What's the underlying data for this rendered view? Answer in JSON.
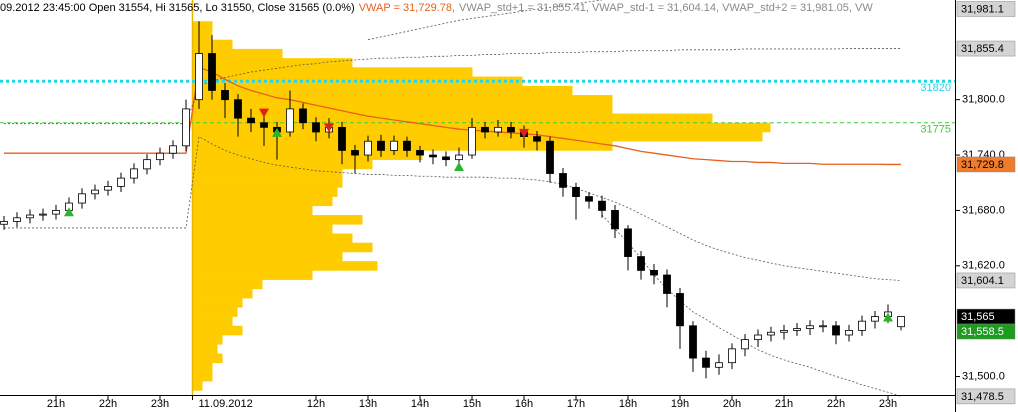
{
  "chart_data": {
    "type": "candlestick",
    "header": [
      {
        "text": "09.2012 23:45:00 Open 31554, Hi 31565, Lo 31550, Close 31565 (0.0%)",
        "color": "#000000"
      },
      {
        "text": "VWAP = 31,729.78,",
        "color": "#e8601c"
      },
      {
        "text": "VWAP_std+1 = 31,855.41, VWAP_std-1 = 31,604.14, VWAP_std+2 = 31,981.05, VW",
        "color": "#8a8a8a"
      }
    ],
    "categories": [
      null,
      null,
      null,
      null,
      "21h",
      null,
      null,
      null,
      "22h",
      null,
      null,
      null,
      "23h",
      null,
      null,
      "11.09.2012",
      null,
      null,
      null,
      null,
      null,
      null,
      null,
      null,
      "12h",
      null,
      null,
      null,
      "13h",
      null,
      null,
      null,
      "14h",
      null,
      null,
      null,
      "15h",
      null,
      null,
      null,
      "16h",
      null,
      null,
      null,
      "17h",
      null,
      null,
      null,
      "18h",
      null,
      null,
      null,
      "19h",
      null,
      null,
      null,
      "20h",
      null,
      null,
      null,
      "21h",
      null,
      null,
      null,
      "22h",
      null,
      null,
      null,
      "23h",
      null
    ],
    "open": [
      31665,
      31668,
      31672,
      31675,
      31676,
      31680,
      31688,
      31698,
      31702,
      31706,
      31715,
      31725,
      31735,
      31742,
      31750,
      31800,
      31850,
      31810,
      31800,
      31780,
      31775,
      31770,
      31765,
      31790,
      31775,
      31765,
      31770,
      31745,
      31740,
      31755,
      31745,
      31755,
      31745,
      31740,
      31738,
      31735,
      31740,
      31770,
      31765,
      31770,
      31765,
      31760,
      31755,
      31720,
      31705,
      31695,
      31690,
      31680,
      31660,
      31630,
      31615,
      31610,
      31590,
      31555,
      31520,
      31510,
      31515,
      31530,
      31540,
      31545,
      31548,
      31550,
      31552,
      31555,
      31555,
      31545,
      31550,
      31560,
      31565,
      31554
    ],
    "high": [
      31674,
      31678,
      31681,
      31682,
      31686,
      31694,
      31704,
      31708,
      31712,
      31721,
      31731,
      31741,
      31748,
      31756,
      31800,
      31885,
      31870,
      31818,
      31806,
      31790,
      31786,
      31776,
      31810,
      31796,
      31781,
      31780,
      31776,
      31751,
      31761,
      31762,
      31761,
      31760,
      31750,
      31746,
      31744,
      31748,
      31780,
      31776,
      31778,
      31776,
      31772,
      31766,
      31760,
      31726,
      31710,
      31700,
      31696,
      31686,
      31664,
      31636,
      31622,
      31616,
      31596,
      31560,
      31528,
      31524,
      31536,
      31546,
      31551,
      31554,
      31556,
      31558,
      31561,
      31561,
      31560,
      31556,
      31566,
      31571,
      31578,
      31565
    ],
    "low": [
      31659,
      31662,
      31666,
      31669,
      31670,
      31674,
      31682,
      31692,
      31696,
      31700,
      31709,
      31719,
      31729,
      31736,
      31744,
      31790,
      31800,
      31780,
      31760,
      31765,
      31750,
      31735,
      31760,
      31768,
      31755,
      31758,
      31730,
      31720,
      31733,
      31738,
      31740,
      31738,
      31732,
      31730,
      31728,
      31727,
      31736,
      31758,
      31760,
      31758,
      31748,
      31745,
      31710,
      31695,
      31670,
      31682,
      31672,
      31650,
      31615,
      31605,
      31600,
      31575,
      31530,
      31505,
      31498,
      31502,
      31508,
      31522,
      31532,
      31538,
      31540,
      31544,
      31545,
      31548,
      31535,
      31538,
      31544,
      31552,
      31558,
      31550
    ],
    "close": [
      31668,
      31672,
      31675,
      31676,
      31680,
      31688,
      31698,
      31702,
      31706,
      31715,
      31725,
      31735,
      31742,
      31750,
      31790,
      31850,
      31810,
      31800,
      31780,
      31775,
      31770,
      31765,
      31790,
      31775,
      31765,
      31770,
      31745,
      31740,
      31755,
      31745,
      31755,
      31745,
      31740,
      31738,
      31735,
      31740,
      31770,
      31765,
      31770,
      31765,
      31760,
      31755,
      31720,
      31705,
      31695,
      31690,
      31680,
      31660,
      31630,
      31615,
      31610,
      31590,
      31555,
      31520,
      31510,
      31515,
      31530,
      31540,
      31545,
      31548,
      31550,
      31552,
      31555,
      31555,
      31545,
      31550,
      31560,
      31565,
      31570,
      31565
    ],
    "overlays": [
      {
        "color": "#e8601c",
        "dash": false,
        "values": [
          31742,
          31742,
          31742,
          31742,
          31742,
          31742,
          31742,
          31742,
          31742,
          31742,
          31742,
          31742,
          31742,
          31742,
          31742,
          31835,
          31830,
          31822,
          31815,
          31810,
          31806,
          31802,
          31800,
          31797,
          31794,
          31791,
          31788,
          31785,
          31782,
          31780,
          31778,
          31776,
          31774,
          31772,
          31770,
          31768,
          31767,
          31766,
          31765,
          31764,
          31763,
          31762,
          31760,
          31758,
          31756,
          31754,
          31752,
          31750,
          31747,
          31744,
          31742,
          31740,
          31738,
          31736,
          31735,
          31734,
          31733,
          31733,
          31732,
          31732,
          31731,
          31731,
          31731,
          31730,
          31730,
          31730,
          31730,
          31730,
          31729.8,
          31729.8
        ]
      },
      {
        "color": "#555555",
        "dash": true,
        "values": [
          31774,
          31774,
          31774,
          31774,
          31774,
          31774,
          31774,
          31774,
          31774,
          31774,
          31774,
          31774,
          31774,
          31774,
          31774,
          31815,
          31820,
          31824,
          31827,
          31830,
          31832,
          31834,
          31836,
          31838,
          31839,
          31841,
          31842,
          31843,
          31844,
          31845,
          31845,
          31846,
          31846,
          31847,
          31847,
          31848,
          31848,
          31849,
          31849,
          31850,
          31850,
          31850,
          31851,
          31851,
          31851,
          31852,
          31852,
          31852,
          31853,
          31853,
          31853,
          31853,
          31854,
          31854,
          31854,
          31854,
          31854,
          31855,
          31855,
          31855,
          31855,
          31855,
          31855,
          31855,
          31855,
          31855.4,
          31855.4,
          31855.4,
          31855.4,
          31855.4
        ]
      },
      {
        "color": "#555555",
        "dash": true,
        "values": [
          31661,
          31661,
          31661,
          31661,
          31661,
          31661,
          31661,
          31661,
          31661,
          31661,
          31661,
          31661,
          31661,
          31661,
          31661,
          31760,
          31752,
          31745,
          31740,
          31736,
          31732,
          31729,
          31727,
          31725,
          31723,
          31722,
          31721,
          31720,
          31719,
          31719,
          31718,
          31718,
          31717,
          31717,
          31716,
          31716,
          31716,
          31716,
          31715,
          31715,
          31714,
          31713,
          31711,
          31708,
          31704,
          31699,
          31694,
          31689,
          31683,
          31676,
          31669,
          31662,
          31655,
          31648,
          31642,
          31637,
          31633,
          31629,
          31626,
          31623,
          31620,
          31618,
          31616,
          31614,
          31612,
          31610,
          31608,
          31606,
          31605,
          31604.1
        ]
      },
      {
        "color": "#555555",
        "dash": true,
        "values": [
          null,
          null,
          null,
          null,
          null,
          null,
          null,
          null,
          null,
          null,
          null,
          null,
          null,
          null,
          null,
          null,
          null,
          null,
          null,
          null,
          null,
          null,
          null,
          null,
          null,
          null,
          null,
          null,
          31865,
          31868,
          31871,
          31874,
          31877,
          31880,
          31883,
          31886,
          31888,
          31890,
          31892,
          31894,
          31896,
          31898,
          31900,
          31902,
          31904,
          31906,
          31908,
          null,
          null,
          null,
          null,
          null,
          null,
          null,
          null,
          null,
          null,
          null,
          null,
          null,
          null,
          null,
          null,
          null,
          null,
          null,
          null,
          null,
          null,
          null
        ]
      },
      {
        "color": "#555555",
        "dash": true,
        "values": [
          null,
          null,
          null,
          null,
          null,
          null,
          null,
          null,
          null,
          null,
          null,
          null,
          null,
          null,
          null,
          null,
          null,
          null,
          null,
          null,
          null,
          null,
          null,
          null,
          null,
          null,
          null,
          null,
          null,
          null,
          null,
          null,
          null,
          null,
          null,
          null,
          null,
          null,
          null,
          null,
          null,
          null,
          null,
          null,
          null,
          null,
          31675,
          31660,
          31645,
          31628,
          31610,
          31595,
          31582,
          31570,
          31562,
          31553,
          31545,
          31537,
          31529,
          31523,
          31518,
          31514,
          31510,
          31505,
          31500,
          31496,
          31491,
          31487,
          31483,
          31478.5
        ]
      }
    ],
    "profile": {
      "color": "#ffcc00",
      "levels": [
        31490,
        31500,
        31510,
        31520,
        31530,
        31540,
        31550,
        31560,
        31570,
        31580,
        31590,
        31600,
        31610,
        31620,
        31630,
        31640,
        31650,
        31660,
        31670,
        31680,
        31690,
        31700,
        31710,
        31720,
        31730,
        31740,
        31750,
        31760,
        31770,
        31780,
        31790,
        31800,
        31810,
        31820,
        31830,
        31840,
        31850,
        31860,
        31870,
        31880
      ],
      "volumes": [
        10,
        20,
        20,
        30,
        25,
        30,
        50,
        40,
        45,
        50,
        60,
        70,
        120,
        185,
        150,
        180,
        160,
        140,
        170,
        120,
        140,
        145,
        150,
        150,
        180,
        230,
        420,
        570,
        578,
        520,
        420,
        420,
        380,
        330,
        280,
        160,
        90,
        40,
        20,
        20
      ]
    },
    "level_lines": [
      {
        "value": 31820,
        "color": "#22d6e8"
      },
      {
        "value": 31775,
        "color": "#3ccf3c"
      }
    ],
    "markers": [
      {
        "direction": "up",
        "color": "#2bb52b",
        "x": [
          5,
          21,
          35,
          68
        ],
        "values": [
          31678,
          31764,
          31727,
          31564
        ]
      },
      {
        "direction": "down",
        "color": "#e0201b",
        "x": [
          20,
          25,
          40
        ],
        "values": [
          31786,
          31770,
          31764
        ]
      }
    ],
    "ylim": [
      31480,
      31908
    ],
    "yticks": [
      {
        "value": 31500,
        "label": "31,500.0"
      },
      {
        "value": 31620,
        "label": "31,620.0"
      },
      {
        "value": 31680,
        "label": "31,680.0"
      },
      {
        "value": 31740,
        "label": "31,740.0"
      },
      {
        "value": 31800,
        "label": "31,800.0"
      }
    ],
    "price_tags": [
      {
        "value": 31981.1,
        "label": "31,981.1",
        "bg": "#d4d4d4",
        "fg": "#000000"
      },
      {
        "value": 31855.4,
        "label": "31,855.4",
        "bg": "#d4d4d4",
        "fg": "#000000"
      },
      {
        "value": 31729.8,
        "label": "31,729.8",
        "bg": "#f07b2a",
        "fg": "#000000"
      },
      {
        "value": 31604.1,
        "label": "31,604.1",
        "bg": "#d4d4d4",
        "fg": "#000000"
      },
      {
        "value": 31565,
        "label": "31,565",
        "bg": "#000000",
        "fg": "#ffffff"
      },
      {
        "value": 31558.5,
        "label": "31,558.5",
        "bg": "#1c9c1c",
        "fg": "#ffffff"
      },
      {
        "value": 31478.5,
        "label": "31,478.5",
        "bg": "#d4d4d4",
        "fg": "#000000"
      }
    ]
  }
}
